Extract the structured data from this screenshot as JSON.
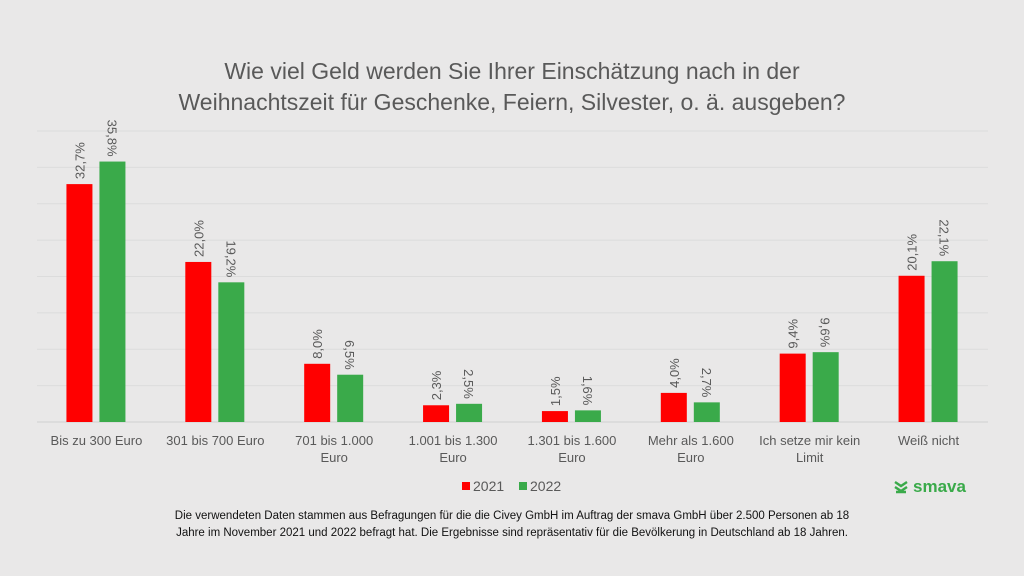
{
  "chart_data": {
    "type": "bar",
    "title": "Wie viel Geld werden Sie Ihrer Einschätzung nach in der Weihnachtszeit für Geschenke, Feiern, Silvester, o. ä. ausgeben?",
    "title_lines": [
      "Wie viel Geld werden Sie Ihrer Einschätzung nach in der",
      "Weihnachtszeit für Geschenke, Feiern, Silvester, o. ä. ausgeben?"
    ],
    "categories": [
      [
        "Bis zu 300 Euro"
      ],
      [
        "301 bis 700 Euro"
      ],
      [
        "701 bis 1.000",
        "Euro"
      ],
      [
        "1.001 bis 1.300",
        "Euro"
      ],
      [
        "1.301 bis 1.600",
        "Euro"
      ],
      [
        "Mehr als 1.600",
        "Euro"
      ],
      [
        "Ich setze mir kein",
        "Limit"
      ],
      [
        "Weiß nicht"
      ]
    ],
    "series": [
      {
        "name": "2021",
        "color": "#ff0000",
        "values": [
          32.7,
          22.0,
          8.0,
          2.3,
          1.5,
          4.0,
          9.4,
          20.1
        ],
        "labels": [
          "32,7%",
          "22,0%",
          "8,0%",
          "2,3%",
          "1,5%",
          "4,0%",
          "9,4%",
          "20,1%"
        ]
      },
      {
        "name": "2022",
        "color": "#3aaa4a",
        "values": [
          35.8,
          19.2,
          6.5,
          2.5,
          1.6,
          2.7,
          9.6,
          22.1
        ],
        "labels": [
          "35,8%",
          "19,2%",
          "6,5%",
          "2,5%",
          "1,6%",
          "2,7%",
          "9,6%",
          "22,1%"
        ]
      }
    ],
    "ylim": [
      0,
      40
    ],
    "grid": true,
    "legend": "bottom-center",
    "xlabel": "",
    "ylabel": ""
  },
  "brand": {
    "name": "smava",
    "color": "#3aaa4a"
  },
  "note_lines": [
    "Die verwendeten Daten stammen aus Befragungen für die die Civey GmbH im Auftrag der smava GmbH über 2.500 Personen ab 18",
    "Jahre im November 2021 und 2022 befragt hat. Die Ergebnisse sind repräsentativ für die Bevölkerung in Deutschland ab 18 Jahren."
  ]
}
